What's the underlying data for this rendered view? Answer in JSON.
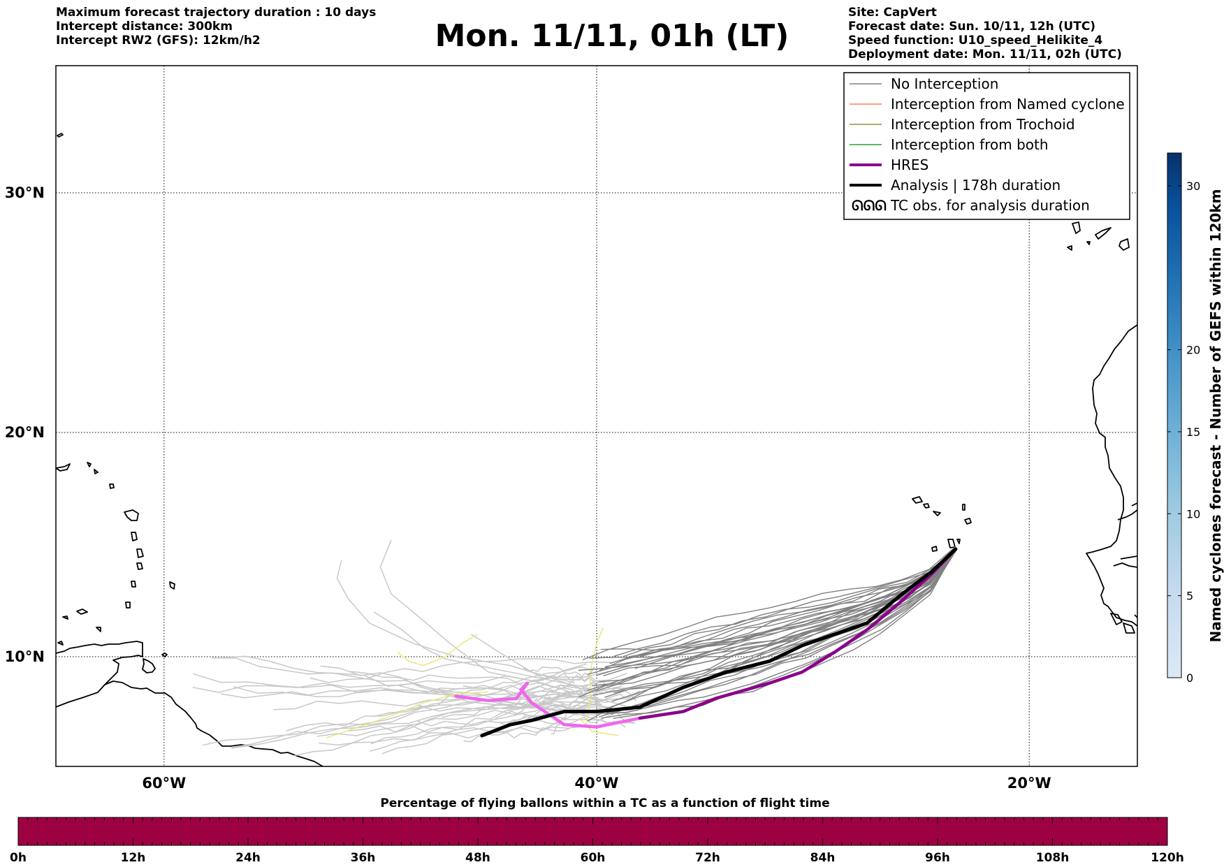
{
  "header": {
    "left_lines": [
      "Maximum forecast trajectory duration : 10 days",
      "Intercept distance: 300km",
      "Intercept RW2 (GFS):  12km/h2"
    ],
    "title": "Mon. 11/11, 01h (LT)",
    "right_lines": [
      "Site: CapVert",
      "Forecast date: Sun. 10/11, 12h (UTC)",
      "Speed function: U10_speed_Helikite_4",
      "Deployment date: Mon. 11/11, 02h (UTC)"
    ]
  },
  "map": {
    "lon_range": [
      -65,
      -15
    ],
    "lat_range": [
      5,
      35
    ],
    "lat_labels": [
      {
        "lat": 30,
        "label": "30°N"
      },
      {
        "lat": 20,
        "label": "20°N"
      },
      {
        "lat": 10,
        "label": "10°N"
      }
    ],
    "lon_labels": [
      {
        "lon": -60,
        "label": "60°W"
      },
      {
        "lon": -40,
        "label": "40°W"
      },
      {
        "lon": -20,
        "label": "20°W"
      }
    ],
    "colors": {
      "no_interception": "#808080",
      "no_interception_light": "#c8c8c8",
      "named_cyclone": "#ff7f50",
      "trochoid": "#9c8b3a",
      "both": "#2ca02c",
      "hres": "#8b008b",
      "hres_light": "#ee66ee",
      "analysis": "#000000",
      "yellow_tracks": "#e8e87a"
    },
    "hres_track": [
      [
        -23.4,
        14.8
      ],
      [
        -24.5,
        13.7
      ],
      [
        -26,
        12.4
      ],
      [
        -27.5,
        11.2
      ],
      [
        -29,
        10.2
      ],
      [
        -30.5,
        9.3
      ],
      [
        -32,
        8.8
      ],
      [
        -34.5,
        8.1
      ],
      [
        -36,
        7.5
      ],
      [
        -38,
        7.2
      ],
      [
        -40,
        6.8
      ],
      [
        -41.5,
        6.9
      ],
      [
        -43,
        7.9
      ],
      [
        -43.5,
        8.5
      ],
      [
        -43.2,
        8.8
      ],
      [
        -43.7,
        8.1
      ],
      [
        -45,
        8
      ],
      [
        -46.5,
        8.2
      ]
    ],
    "analysis_track": [
      [
        -23.4,
        14.8
      ],
      [
        -24.5,
        13.8
      ],
      [
        -26,
        12.7
      ],
      [
        -27.5,
        11.5
      ],
      [
        -29,
        11
      ],
      [
        -30.5,
        10.5
      ],
      [
        -32,
        9.8
      ],
      [
        -34,
        9.3
      ],
      [
        -36,
        8.6
      ],
      [
        -38,
        7.7
      ],
      [
        -40,
        7.5
      ],
      [
        -41.5,
        7.5
      ],
      [
        -43,
        7.1
      ],
      [
        -44,
        6.9
      ],
      [
        -45.3,
        6.4
      ]
    ]
  },
  "legend": {
    "items": [
      {
        "label": "No Interception",
        "color": "#808080",
        "kind": "line-thin"
      },
      {
        "label": "Interception from Named cyclone",
        "color": "#ff7f50",
        "kind": "line-thin"
      },
      {
        "label": "Interception from Trochoid",
        "color": "#9c8b3a",
        "kind": "line-thin"
      },
      {
        "label": "Interception from both",
        "color": "#2ca02c",
        "kind": "line-thin"
      },
      {
        "label": "HRES",
        "color": "#8b008b",
        "kind": "line-thick"
      },
      {
        "label": "Analysis | 178h duration",
        "color": "#000000",
        "kind": "line-thick"
      },
      {
        "label": "TC obs. for analysis duration",
        "color": "#000000",
        "kind": "cyclone-icons"
      }
    ]
  },
  "colorbar_right": {
    "label": "Named cyclones forecast - Number of GEFS within 120km",
    "min": 0,
    "max": 32,
    "ticks": [
      0,
      5,
      10,
      15,
      20,
      30
    ],
    "colors": [
      "#dce9f6",
      "#c6dbef",
      "#9ecae1",
      "#6baed6",
      "#4292c6",
      "#2171b5",
      "#08519c",
      "#08306b"
    ]
  },
  "colorbar_bottom": {
    "title": "Percentage of flying ballons within a TC as a function of flight time",
    "fill_color": "#9e0142",
    "ticks": [
      "0h",
      "12h",
      "24h",
      "36h",
      "48h",
      "60h",
      "72h",
      "84h",
      "96h",
      "108h",
      "120h"
    ],
    "value_percent": 0
  }
}
